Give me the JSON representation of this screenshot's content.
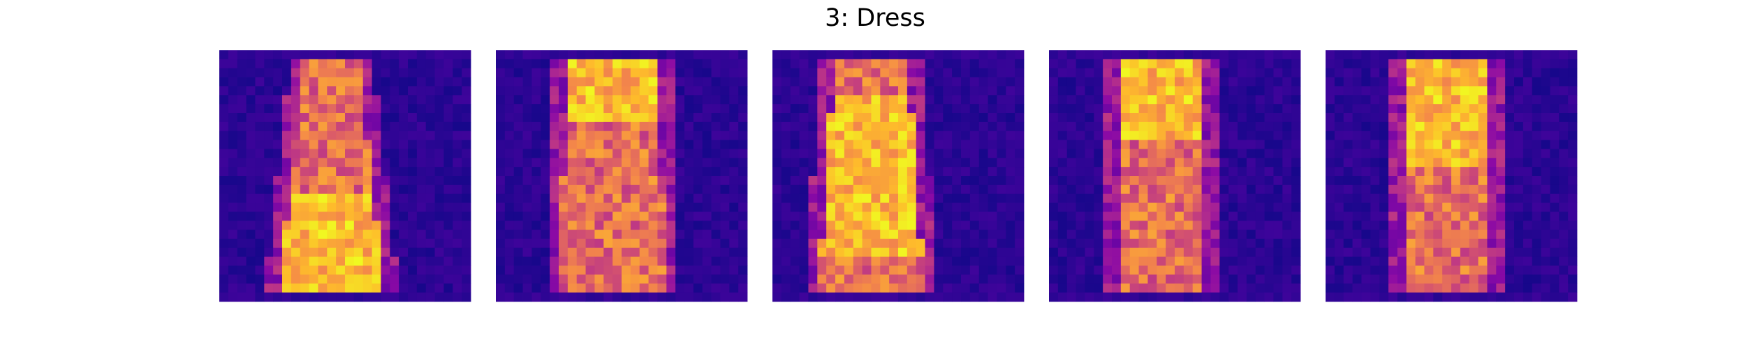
{
  "title": "3: Dress"
}
